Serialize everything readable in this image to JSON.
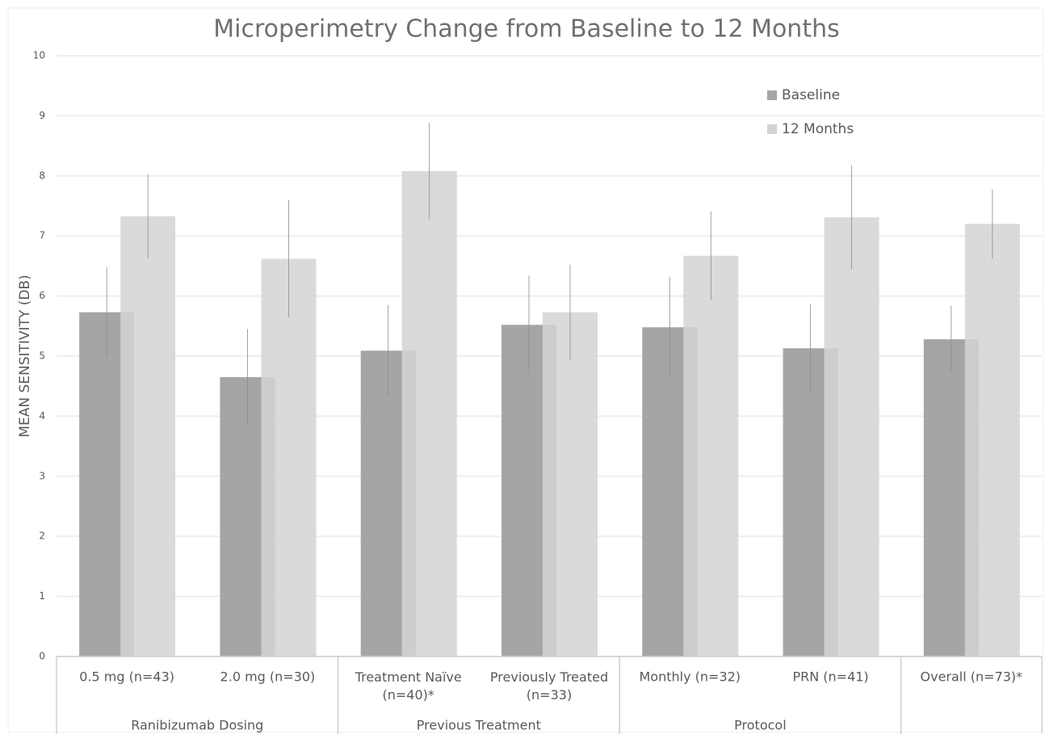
{
  "chart_data": {
    "type": "bar",
    "title": "Microperimetry Change from Baseline to 12 Months",
    "y_label": "MEAN SENSITIVITY (DB)",
    "categories": [
      "0.5 mg (n=43)",
      "2.0 mg (n=30)",
      "Treatment Naïve (n=40)*",
      "Previously Treated (n=33)",
      "Monthly (n=32)",
      "PRN (n=41)",
      "Overall (n=73)*"
    ],
    "group_labels": [
      "Ranibizumab Dosing",
      "Previous Treatment",
      "Protocol",
      null
    ],
    "group_sizes": [
      2,
      2,
      2,
      1
    ],
    "series": [
      {
        "name": "Baseline",
        "color": "#a5a5a5",
        "values": [
          5.73,
          4.65,
          5.09,
          5.52,
          5.48,
          5.13,
          5.28
        ],
        "errors": [
          0.75,
          0.8,
          0.76,
          0.82,
          0.84,
          0.74,
          0.56
        ]
      },
      {
        "name": "12 Months",
        "color": "#d3d3d3",
        "values": [
          7.33,
          6.62,
          8.08,
          5.73,
          6.67,
          7.31,
          7.2
        ],
        "errors": [
          0.7,
          0.98,
          0.8,
          0.79,
          0.74,
          0.86,
          0.58
        ]
      }
    ],
    "ylim": [
      0,
      10
    ],
    "yticks": [
      0,
      1,
      2,
      3,
      4,
      5,
      6,
      7,
      8,
      9,
      10
    ],
    "grid": true,
    "legend": "upper right"
  }
}
